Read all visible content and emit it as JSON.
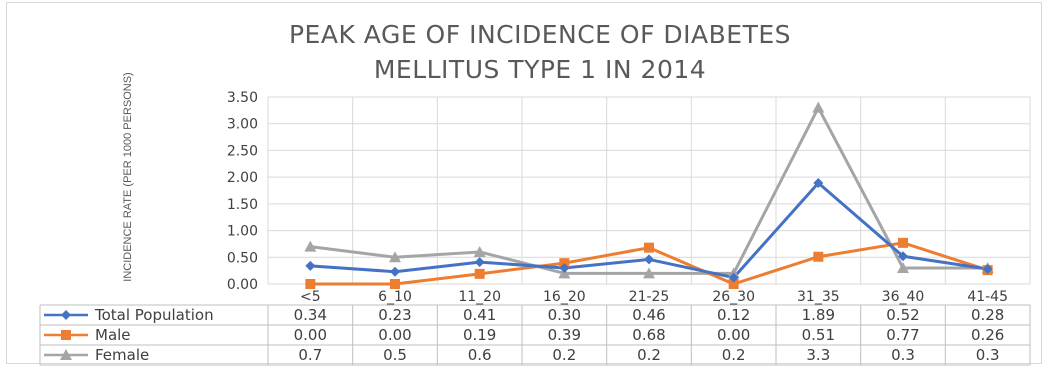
{
  "chart_data": {
    "type": "line",
    "title_line1": "PEAK AGE OF INCIDENCE OF DIABETES",
    "title_line2": "MELLITUS TYPE 1 IN 2014",
    "ylabel": "INCIDENCE RATE (PER 1000 PERSONS)",
    "xlabel": "",
    "ylim": [
      0,
      3.5
    ],
    "yticks": [
      "0.00",
      "0.50",
      "1.00",
      "1.50",
      "2.00",
      "2.50",
      "3.00",
      "3.50"
    ],
    "grid": true,
    "legend_placement": "data-table",
    "categories": [
      "<5",
      "6_10",
      "11_20",
      "16_20",
      "21-25",
      "26_30",
      "31_35",
      "36_40",
      "41-45"
    ],
    "series": [
      {
        "name": "Total Population",
        "color": "#4472c4",
        "marker": "diamond",
        "values": [
          0.34,
          0.23,
          0.41,
          0.3,
          0.46,
          0.12,
          1.89,
          0.52,
          0.28
        ],
        "labels": [
          "0.34",
          "0.23",
          "0.41",
          "0.30",
          "0.46",
          "0.12",
          "1.89",
          "0.52",
          "0.28"
        ]
      },
      {
        "name": "Male",
        "color": "#ed7d31",
        "marker": "square",
        "values": [
          0.0,
          0.0,
          0.19,
          0.39,
          0.68,
          0.0,
          0.51,
          0.77,
          0.26
        ],
        "labels": [
          "0.00",
          "0.00",
          "0.19",
          "0.39",
          "0.68",
          "0.00",
          "0.51",
          "0.77",
          "0.26"
        ]
      },
      {
        "name": "Female",
        "color": "#a5a5a5",
        "marker": "triangle",
        "values": [
          0.7,
          0.5,
          0.6,
          0.2,
          0.2,
          0.2,
          3.3,
          0.3,
          0.3
        ],
        "labels": [
          "0.7",
          "0.5",
          "0.6",
          "0.2",
          "0.2",
          "0.2",
          "3.3",
          "0.3",
          "0.3"
        ]
      }
    ]
  }
}
